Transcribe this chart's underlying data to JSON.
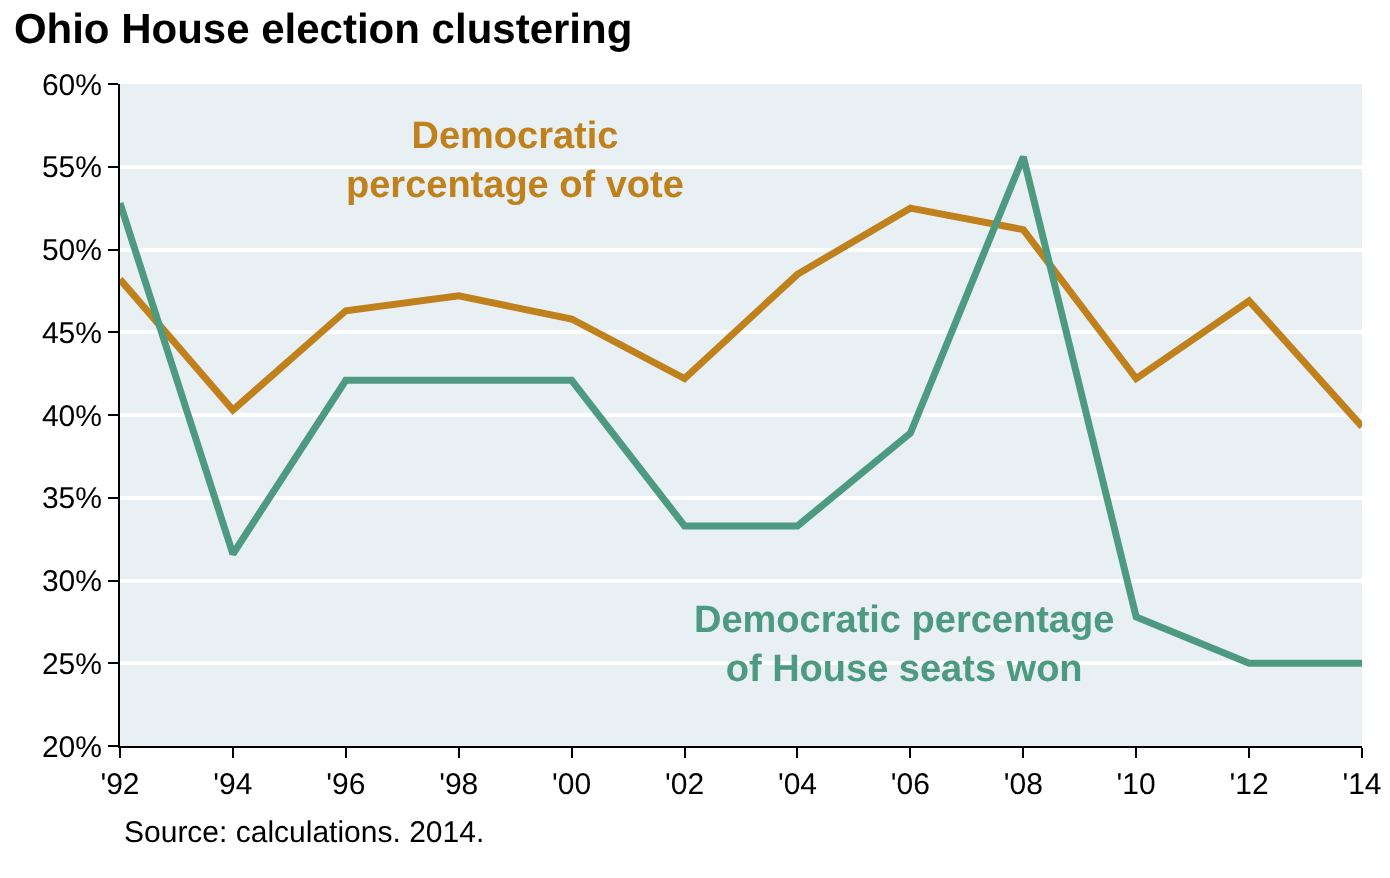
{
  "chart_data": {
    "type": "line",
    "title": "Ohio House election clustering",
    "categories": [
      "'92",
      "'94",
      "'96",
      "'98",
      "'00",
      "'02",
      "'04",
      "'06",
      "'08",
      "'10",
      "'12",
      "'14"
    ],
    "series": [
      {
        "name": "Democratic percentage of vote",
        "color": "#c0801c",
        "values": [
          48.2,
          40.3,
          46.3,
          47.2,
          45.8,
          42.2,
          48.5,
          52.5,
          51.2,
          42.2,
          46.9,
          39.3
        ]
      },
      {
        "name": "Democratic percentage of House seats won",
        "color": "#4e9a80",
        "values": [
          52.8,
          31.6,
          42.1,
          42.1,
          42.1,
          33.3,
          33.3,
          38.9,
          55.6,
          27.8,
          25,
          25
        ]
      }
    ],
    "ylim": [
      20,
      60
    ],
    "yticks": [
      {
        "value": 20,
        "label": "20%"
      },
      {
        "value": 25,
        "label": "25%"
      },
      {
        "value": 30,
        "label": "30%"
      },
      {
        "value": 35,
        "label": "35%"
      },
      {
        "value": 40,
        "label": "40%"
      },
      {
        "value": 45,
        "label": "45%"
      },
      {
        "value": 50,
        "label": "50%"
      },
      {
        "value": 55,
        "label": "55%"
      },
      {
        "value": 60,
        "label": "60%"
      }
    ],
    "grid": "y",
    "legend": false,
    "line_style": "solid",
    "marker": "none",
    "annotations": [
      "Source: calculations. 2014."
    ]
  }
}
